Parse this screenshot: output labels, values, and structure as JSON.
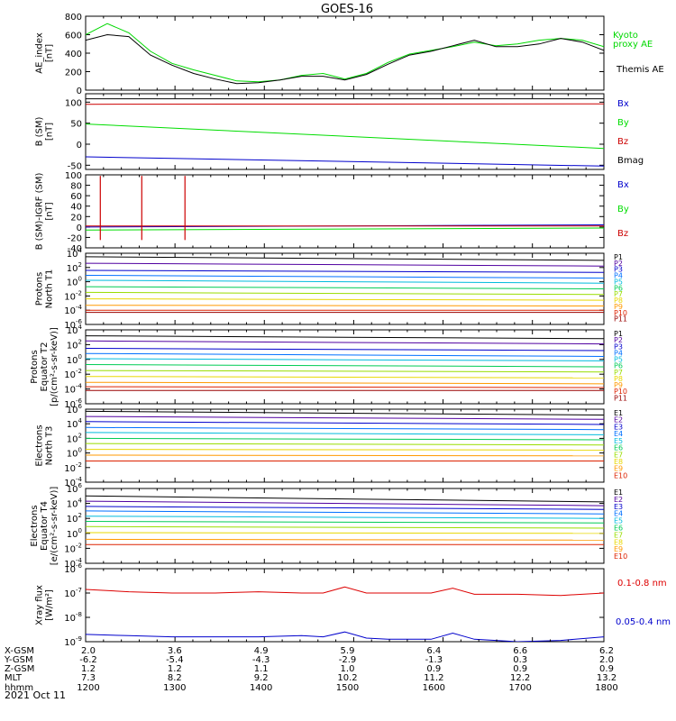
{
  "title": "GOES-16",
  "date": "2021 Oct 11",
  "x_ticks": [
    "1200",
    "1300",
    "1400",
    "1500",
    "1600",
    "1700",
    "1800"
  ],
  "x_minor_ticks": 29,
  "ephemeris": {
    "labels": [
      "X-GSM",
      "Y-GSM",
      "Z-GSM",
      "MLT",
      "hhmm"
    ],
    "columns": [
      [
        "2.0",
        "-6.2",
        "1.2",
        "7.3",
        "1200"
      ],
      [
        "3.6",
        "-5.4",
        "1.2",
        "8.2",
        "1300"
      ],
      [
        "4.9",
        "-4.3",
        "1.1",
        "9.2",
        "1400"
      ],
      [
        "5.9",
        "-2.9",
        "1.0",
        "10.2",
        "1500"
      ],
      [
        "6.4",
        "-1.3",
        "0.9",
        "11.2",
        "1600"
      ],
      [
        "6.6",
        "0.3",
        "0.9",
        "12.2",
        "1700"
      ],
      [
        "6.2",
        "2.0",
        "0.9",
        "13.2",
        "1800"
      ]
    ]
  },
  "chart_data": [
    {
      "type": "line",
      "ylabel": [
        "AE_index",
        "[nT]"
      ],
      "ylim": [
        0,
        800
      ],
      "log": false,
      "yticks": [
        "0",
        "200",
        "400",
        "600",
        "800"
      ],
      "x": [
        12.0,
        12.25,
        12.5,
        12.75,
        13.0,
        13.25,
        13.5,
        13.75,
        14.0,
        14.25,
        14.5,
        14.75,
        15.0,
        15.25,
        15.5,
        15.75,
        16.0,
        16.25,
        16.5,
        16.75,
        17.0,
        17.25,
        17.5,
        17.75,
        18.0
      ],
      "series": [
        {
          "name": "Kyoto proxy AE",
          "color": "#00d800",
          "label_lines": [
            "Kyoto",
            "proxy AE"
          ],
          "values": [
            600,
            720,
            620,
            420,
            290,
            220,
            160,
            100,
            90,
            110,
            160,
            180,
            120,
            180,
            300,
            390,
            430,
            470,
            520,
            480,
            500,
            540,
            560,
            540,
            470
          ]
        },
        {
          "name": "Themis AE",
          "color": "#000000",
          "label_lines": [
            "Themis AE"
          ],
          "values": [
            540,
            600,
            580,
            380,
            270,
            180,
            120,
            70,
            80,
            110,
            150,
            150,
            110,
            170,
            280,
            380,
            420,
            480,
            540,
            470,
            470,
            500,
            560,
            520,
            430
          ]
        }
      ]
    },
    {
      "type": "line",
      "ylabel": [
        "B (SM)",
        "[nT]"
      ],
      "ylim": [
        -60,
        120
      ],
      "log": false,
      "yticks": [
        "-50",
        "0",
        "50",
        "100"
      ],
      "x": [
        12.0,
        18.0
      ],
      "series": [
        {
          "name": "Bx",
          "color": "#0000cc",
          "values": [
            -30,
            -52
          ]
        },
        {
          "name": "By",
          "color": "#00dd00",
          "values": [
            48,
            -10
          ]
        },
        {
          "name": "Bz",
          "color": "#cc0000",
          "values": [
            95,
            96
          ]
        },
        {
          "name": "Bmag",
          "color": "#000000",
          "values": [
            108,
            108
          ]
        }
      ]
    },
    {
      "type": "line",
      "ylabel": [
        "B (SM)-IGRF (SM)",
        "[nT]"
      ],
      "ylim": [
        -40,
        100
      ],
      "log": false,
      "yticks": [
        "-40",
        "-20",
        "0",
        "20",
        "40",
        "60",
        "80",
        "100"
      ],
      "x": [
        12.0,
        18.0
      ],
      "series": [
        {
          "name": "Bx",
          "color": "#0000cc",
          "values": [
            0,
            4
          ]
        },
        {
          "name": "By",
          "color": "#00dd00",
          "values": [
            -6,
            -2
          ]
        },
        {
          "name": "Bz",
          "color": "#cc0000",
          "values": [
            2,
            2
          ]
        }
      ],
      "spikes": [
        12.17,
        12.65,
        13.15
      ]
    },
    {
      "type": "line",
      "ylabel": [
        "Protons",
        "North T1"
      ],
      "ylim_exp": [
        -6,
        4
      ],
      "log": true,
      "yexp": [
        4,
        2,
        0,
        -2,
        -4,
        -6
      ],
      "x": [
        12.0,
        18.0
      ],
      "series": [
        {
          "name": "P1",
          "color": "#000000",
          "values": [
            3.5,
            3.0
          ]
        },
        {
          "name": "P2",
          "color": "#5000a0",
          "values": [
            2.6,
            2.2
          ]
        },
        {
          "name": "P3",
          "color": "#0000cc",
          "values": [
            1.6,
            1.3
          ]
        },
        {
          "name": "P4",
          "color": "#0070ff",
          "values": [
            0.9,
            0.5
          ]
        },
        {
          "name": "P5",
          "color": "#00bbdd",
          "values": [
            0.2,
            -0.2
          ]
        },
        {
          "name": "P6",
          "color": "#00cc55",
          "values": [
            -0.7,
            -1.0
          ]
        },
        {
          "name": "P7",
          "color": "#99dd00",
          "values": [
            -1.5,
            -1.8
          ]
        },
        {
          "name": "P8",
          "color": "#e8d800",
          "values": [
            -2.4,
            -2.6
          ]
        },
        {
          "name": "P9",
          "color": "#ff9900",
          "values": [
            -3.3,
            -3.4
          ]
        },
        {
          "name": "P10",
          "color": "#dd2200",
          "values": [
            -4.0,
            -4.0
          ]
        },
        {
          "name": "P11",
          "color": "#990000",
          "values": [
            -4.3,
            -4.3
          ]
        }
      ]
    },
    {
      "type": "line",
      "ylabel": [
        "Protons",
        "Equator T2",
        "[p/(cm²-s-sr-keV)]"
      ],
      "ylim_exp": [
        -6,
        4
      ],
      "log": true,
      "yexp": [
        4,
        2,
        0,
        -2,
        -4,
        -6
      ],
      "x": [
        12.0,
        18.0
      ],
      "series": [
        {
          "name": "P1",
          "color": "#000000",
          "values": [
            3.2,
            2.8
          ]
        },
        {
          "name": "P2",
          "color": "#5000a0",
          "values": [
            2.5,
            2.1
          ]
        },
        {
          "name": "P3",
          "color": "#0000cc",
          "values": [
            1.5,
            1.2
          ]
        },
        {
          "name": "P4",
          "color": "#0070ff",
          "values": [
            0.8,
            0.4
          ]
        },
        {
          "name": "P5",
          "color": "#00bbdd",
          "values": [
            0.1,
            -0.2
          ]
        },
        {
          "name": "P6",
          "color": "#00cc55",
          "values": [
            -0.7,
            -1.0
          ]
        },
        {
          "name": "P7",
          "color": "#99dd00",
          "values": [
            -1.5,
            -1.7
          ]
        },
        {
          "name": "P8",
          "color": "#e8d800",
          "values": [
            -2.3,
            -2.5
          ]
        },
        {
          "name": "P9",
          "color": "#ff9900",
          "values": [
            -3.1,
            -3.3
          ]
        },
        {
          "name": "P10",
          "color": "#dd2200",
          "values": [
            -3.7,
            -3.8
          ]
        },
        {
          "name": "P11",
          "color": "#990000",
          "values": [
            -4.2,
            -4.2
          ]
        }
      ]
    },
    {
      "type": "line",
      "ylabel": [
        "Electrons",
        "North T3"
      ],
      "ylim_exp": [
        -4,
        6
      ],
      "log": true,
      "yexp": [
        6,
        4,
        2,
        0,
        -2,
        -4
      ],
      "x": [
        12.0,
        18.0
      ],
      "series": [
        {
          "name": "E1",
          "color": "#000000",
          "values": [
            5.7,
            5.2
          ]
        },
        {
          "name": "E2",
          "color": "#5000a0",
          "values": [
            5.0,
            4.6
          ]
        },
        {
          "name": "E3",
          "color": "#0000cc",
          "values": [
            4.3,
            3.9
          ]
        },
        {
          "name": "E4",
          "color": "#0070ff",
          "values": [
            3.5,
            3.2
          ]
        },
        {
          "name": "E5",
          "color": "#00bbdd",
          "values": [
            2.8,
            2.5
          ]
        },
        {
          "name": "E6",
          "color": "#00cc55",
          "values": [
            2.0,
            1.8
          ]
        },
        {
          "name": "E7",
          "color": "#99dd00",
          "values": [
            1.3,
            1.1
          ]
        },
        {
          "name": "E8",
          "color": "#e8d800",
          "values": [
            0.5,
            0.4
          ]
        },
        {
          "name": "E9",
          "color": "#ff9900",
          "values": [
            -0.3,
            -0.4
          ]
        },
        {
          "name": "E10",
          "color": "#dd2200",
          "values": [
            -1.1,
            -1.1
          ]
        }
      ]
    },
    {
      "type": "line",
      "ylabel": [
        "Electrons",
        "Equator T4",
        "[e/(cm²-s-sr-keV)]"
      ],
      "ylim_exp": [
        -4,
        6
      ],
      "log": true,
      "yexp": [
        6,
        4,
        2,
        0,
        -2,
        -4
      ],
      "x": [
        12.0,
        18.0
      ],
      "series": [
        {
          "name": "E1",
          "color": "#000000",
          "values": [
            5.0,
            4.2
          ]
        },
        {
          "name": "E2",
          "color": "#5000a0",
          "values": [
            4.3,
            3.7
          ]
        },
        {
          "name": "E3",
          "color": "#0000cc",
          "values": [
            3.6,
            3.2
          ]
        },
        {
          "name": "E4",
          "color": "#0070ff",
          "values": [
            3.0,
            2.6
          ]
        },
        {
          "name": "E5",
          "color": "#00bbdd",
          "values": [
            2.3,
            2.0
          ]
        },
        {
          "name": "E6",
          "color": "#00cc55",
          "values": [
            1.6,
            1.4
          ]
        },
        {
          "name": "E7",
          "color": "#99dd00",
          "values": [
            0.9,
            0.7
          ]
        },
        {
          "name": "E8",
          "color": "#e8d800",
          "values": [
            0.1,
            0.0
          ]
        },
        {
          "name": "E9",
          "color": "#ff9900",
          "values": [
            -0.8,
            -0.9
          ]
        },
        {
          "name": "E10",
          "color": "#dd2200",
          "values": [
            -1.5,
            -1.5
          ]
        }
      ]
    },
    {
      "type": "line",
      "ylabel": [
        "Xray flux",
        "[W/m²]"
      ],
      "ylim_exp": [
        -9,
        -6
      ],
      "log": true,
      "yexp": [
        -6,
        -7,
        -8,
        -9
      ],
      "x": [
        12.0,
        12.5,
        13.0,
        13.5,
        14.0,
        14.5,
        14.75,
        15.0,
        15.25,
        15.5,
        16.0,
        16.25,
        16.5,
        17.0,
        17.5,
        18.0
      ],
      "series": [
        {
          "name": "0.1-0.8 nm",
          "color": "#dd0000",
          "values": [
            -6.85,
            -6.95,
            -7.0,
            -7.0,
            -6.95,
            -7.0,
            -7.0,
            -6.75,
            -7.0,
            -7.0,
            -7.0,
            -6.8,
            -7.05,
            -7.05,
            -7.1,
            -7.0
          ]
        },
        {
          "name": "0.05-0.4 nm",
          "color": "#0000cc",
          "values": [
            -8.7,
            -8.75,
            -8.8,
            -8.8,
            -8.8,
            -8.75,
            -8.8,
            -8.6,
            -8.85,
            -8.9,
            -8.9,
            -8.65,
            -8.9,
            -9.0,
            -8.95,
            -8.8
          ]
        }
      ]
    }
  ]
}
